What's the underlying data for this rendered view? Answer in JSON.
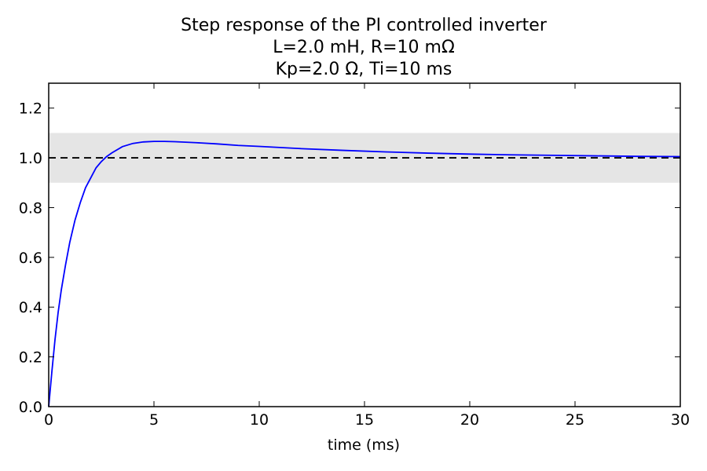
{
  "chart_data": {
    "type": "line",
    "title": [
      "Step response of the PI controlled inverter",
      "L=2.0 mH, R=10 mΩ",
      "Kp=2.0 Ω, Ti=10 ms"
    ],
    "xlabel": "time (ms)",
    "ylabel": "",
    "xlim": [
      0,
      30
    ],
    "ylim": [
      0,
      1.3
    ],
    "xticks": [
      0,
      5,
      10,
      15,
      20,
      25,
      30
    ],
    "xtick_labels": [
      "0",
      "5",
      "10",
      "15",
      "20",
      "25",
      "30"
    ],
    "yticks": [
      0.0,
      0.2,
      0.4,
      0.6,
      0.8,
      1.0,
      1.2
    ],
    "ytick_labels": [
      "0.0",
      "0.2",
      "0.4",
      "0.6",
      "0.8",
      "1.0",
      "1.2"
    ],
    "grid": false,
    "band": {
      "y0": 0.9,
      "y1": 1.1,
      "color": "#e5e5e5"
    },
    "reference_line": {
      "y": 1.0,
      "style": "dashed",
      "color": "#000000"
    },
    "series": [
      {
        "color": "#0000ff",
        "x": [
          0,
          0.15,
          0.3,
          0.45,
          0.6,
          0.8,
          1.0,
          1.25,
          1.5,
          1.75,
          2.0,
          2.25,
          2.5,
          2.75,
          3.0,
          3.5,
          4.0,
          4.5,
          5.0,
          5.5,
          6.0,
          7.0,
          8.0,
          9.0,
          10.0,
          12.0,
          14.0,
          16.0,
          18.0,
          20.0,
          22.0,
          24.0,
          26.0,
          28.0,
          30.0
        ],
        "y": [
          0.0,
          0.14,
          0.27,
          0.38,
          0.47,
          0.57,
          0.66,
          0.75,
          0.82,
          0.88,
          0.92,
          0.96,
          0.985,
          1.005,
          1.02,
          1.045,
          1.058,
          1.064,
          1.066,
          1.066,
          1.065,
          1.061,
          1.056,
          1.05,
          1.046,
          1.037,
          1.03,
          1.024,
          1.019,
          1.015,
          1.012,
          1.01,
          1.008,
          1.006,
          1.005
        ]
      }
    ]
  }
}
